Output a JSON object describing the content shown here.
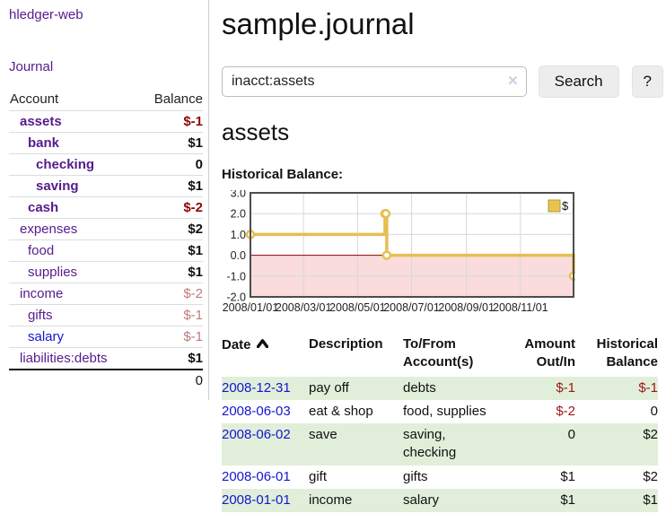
{
  "colors": {
    "purple": "#561b8b",
    "blue": "#1216cf",
    "neg-strong": "#8f0606",
    "neg-soft": "#bd7b7b",
    "neg-table": "#9d1616",
    "stripe": "#e1efda",
    "divider": "#cccccc",
    "row-border": "#dddddd"
  },
  "sidebar": {
    "brand": "hledger-web",
    "nav": {
      "journal": "Journal"
    },
    "accounts": {
      "col_account": "Account",
      "col_balance": "Balance",
      "rows": [
        {
          "name": "assets",
          "balance": "$-1"
        },
        {
          "name": "bank",
          "balance": "$1"
        },
        {
          "name": "checking",
          "balance": "0"
        },
        {
          "name": "saving",
          "balance": "$1"
        },
        {
          "name": "cash",
          "balance": "$-2"
        },
        {
          "name": "expenses",
          "balance": "$2"
        },
        {
          "name": "food",
          "balance": "$1"
        },
        {
          "name": "supplies",
          "balance": "$1"
        },
        {
          "name": "income",
          "balance": "$-2"
        },
        {
          "name": "gifts",
          "balance": "$-1"
        },
        {
          "name": "salary",
          "balance": "$-1"
        },
        {
          "name": "liabilities:debts",
          "balance": "$1"
        }
      ],
      "total": "0"
    }
  },
  "main": {
    "title": "sample.journal",
    "account_title": "assets",
    "chart_heading": "Historical Balance:"
  },
  "search": {
    "value": "inacct:assets",
    "clear_icon": "✕",
    "button_label": "Search",
    "help_label": "?"
  },
  "chart_data": {
    "type": "line",
    "title": "Historical Balance:",
    "step": true,
    "x_range_days": 365,
    "ylim": [
      -2,
      3
    ],
    "yticks": [
      "3.0",
      "2.0",
      "1.0",
      "0.0",
      "-1.0",
      "-2.0"
    ],
    "xticks": [
      {
        "day": 0,
        "label": "2008/01/01"
      },
      {
        "day": 60,
        "label": "2008/03/01"
      },
      {
        "day": 121,
        "label": "2008/05/01"
      },
      {
        "day": 182,
        "label": "2008/07/01"
      },
      {
        "day": 244,
        "label": "2008/09/01"
      },
      {
        "day": 305,
        "label": "2008/11/01"
      }
    ],
    "series": [
      {
        "name": "$",
        "points": [
          {
            "date": "2008-01-01",
            "day": 0,
            "value": 1
          },
          {
            "date": "2008-06-01",
            "day": 152,
            "value": 2
          },
          {
            "date": "2008-06-02",
            "day": 153,
            "value": 2
          },
          {
            "date": "2008-06-03",
            "day": 154,
            "value": 0
          },
          {
            "date": "2008-12-31",
            "day": 365,
            "value": -1
          }
        ]
      }
    ],
    "legend": {
      "label": "$",
      "position": "top-right",
      "swatch": "#e9c256"
    },
    "colors": {
      "line": "#e6bf52",
      "marker_fill": "#ffffff",
      "negative_area": "#fadcdc",
      "zero_line": "#8b0000",
      "grid": "#d8d8d8",
      "border": "#4d4d4d",
      "legend_border": "#b5982f"
    }
  },
  "register": {
    "columns": {
      "date": "Date",
      "description": "Description",
      "tofrom": "To/From Account(s)",
      "amount": "Amount Out/In",
      "balance": "Historical Balance"
    },
    "sort": {
      "column": "date",
      "direction": "ascending"
    },
    "rows": [
      {
        "date": "2008-12-31",
        "description": "pay off",
        "accounts": "debts",
        "amount": "$-1",
        "balance": "$-1"
      },
      {
        "date": "2008-06-03",
        "description": "eat & shop",
        "accounts": "food, supplies",
        "amount": "$-2",
        "balance": "0"
      },
      {
        "date": "2008-06-02",
        "description": "save",
        "accounts": "saving, checking",
        "amount": "0",
        "balance": "$2"
      },
      {
        "date": "2008-06-01",
        "description": "gift",
        "accounts": "gifts",
        "amount": "$1",
        "balance": "$2"
      },
      {
        "date": "2008-01-01",
        "description": "income",
        "accounts": "salary",
        "amount": "$1",
        "balance": "$1"
      }
    ]
  }
}
